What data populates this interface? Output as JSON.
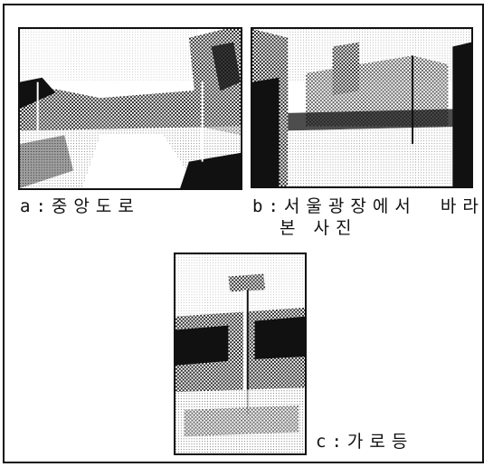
{
  "figures": [
    {
      "id": "a",
      "label": "a",
      "separator": ":",
      "caption": "중앙도로",
      "caption2": ""
    },
    {
      "id": "b",
      "label": "b",
      "separator": ":",
      "caption": "서울광장에서  바라",
      "caption2": "본 사진"
    },
    {
      "id": "c",
      "label": "c",
      "separator": ":",
      "caption": "가로등",
      "caption2": ""
    }
  ]
}
